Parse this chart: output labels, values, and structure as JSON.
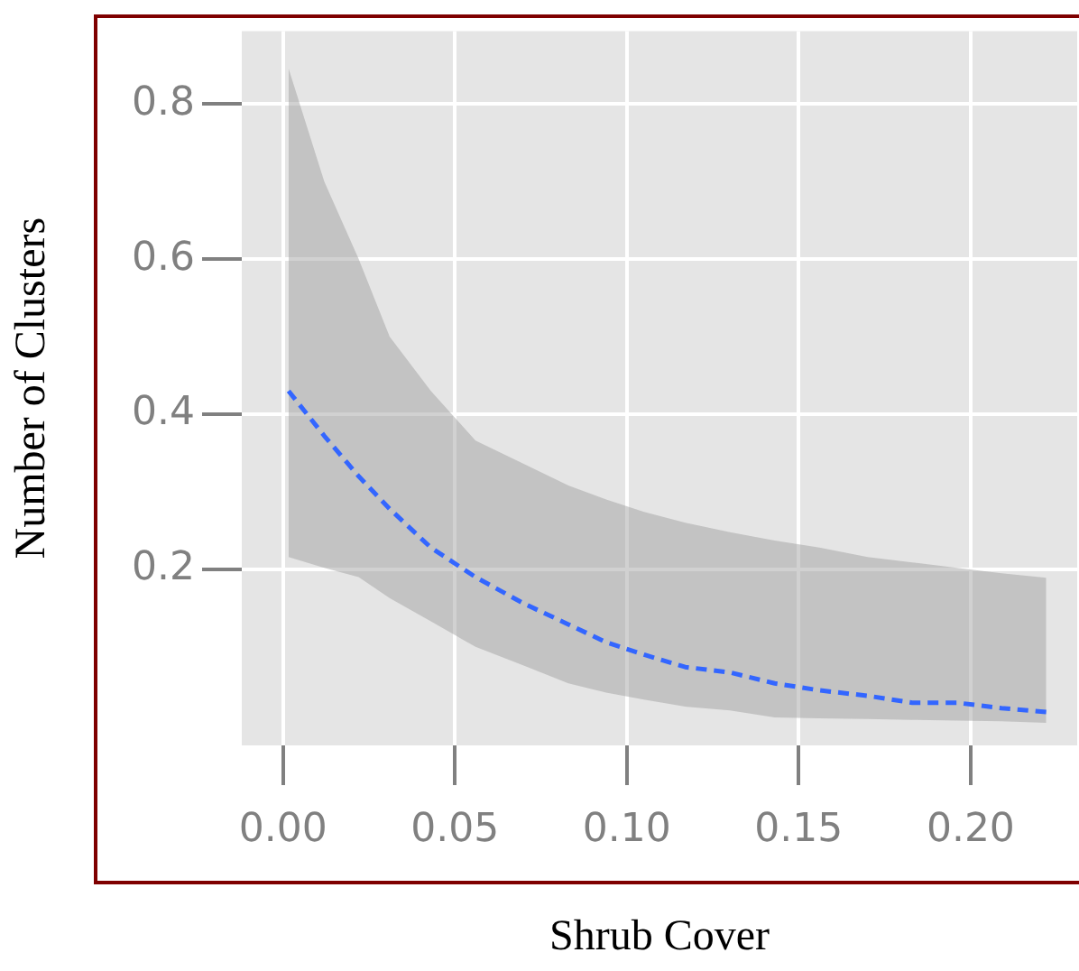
{
  "chart_data": {
    "type": "line",
    "xlabel": "Shrub Cover",
    "ylabel": "Number of Clusters",
    "xlim": [
      -0.012,
      0.231
    ],
    "ylim": [
      -0.027,
      0.894
    ],
    "xticks": [
      {
        "value": 0,
        "label": "0.00"
      },
      {
        "value": 0.05,
        "label": "0.05"
      },
      {
        "value": 0.1,
        "label": "0.10"
      },
      {
        "value": 0.15,
        "label": "0.15"
      },
      {
        "value": 0.2,
        "label": "0.20"
      }
    ],
    "yticks": [
      0.2,
      0.4,
      0.6,
      0.8
    ],
    "grid": true,
    "line_style": "dashed",
    "marker": "none",
    "series": [
      {
        "color": "#3366ff",
        "x": [
          0.0016,
          0.012,
          0.022,
          0.031,
          0.043,
          0.056,
          0.07,
          0.083,
          0.094,
          0.105,
          0.117,
          0.13,
          0.143,
          0.156,
          0.17,
          0.183,
          0.196,
          0.209,
          0.222
        ],
        "values": [
          0.43,
          0.372,
          0.32,
          0.278,
          0.228,
          0.19,
          0.156,
          0.129,
          0.106,
          0.09,
          0.074,
          0.067,
          0.053,
          0.044,
          0.037,
          0.028,
          0.028,
          0.021,
          0.016
        ],
        "upper": [
          0.846,
          0.7,
          0.6,
          0.5,
          0.43,
          0.366,
          0.336,
          0.308,
          0.29,
          0.274,
          0.26,
          0.248,
          0.237,
          0.228,
          0.216,
          0.209,
          0.202,
          0.195,
          0.189
        ],
        "lower": [
          0.216,
          0.202,
          0.19,
          0.163,
          0.133,
          0.1,
          0.076,
          0.053,
          0.041,
          0.032,
          0.023,
          0.018,
          0.009,
          0.008,
          0.007,
          0.006,
          0.005,
          0.004,
          0.002
        ]
      }
    ]
  }
}
